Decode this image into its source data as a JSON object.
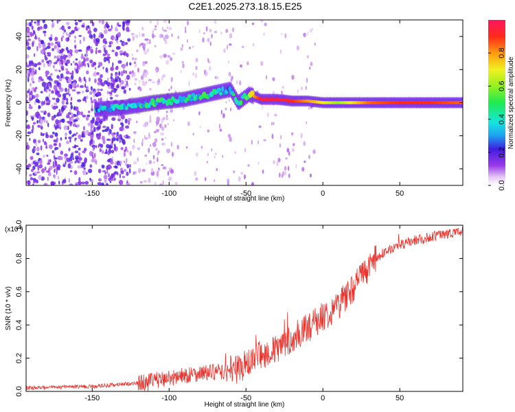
{
  "title": "C2E1.2025.273.18.15.E25",
  "chart_data": [
    {
      "type": "heatmap",
      "name": "spectrogram",
      "xlabel": "Height of straight line (km)",
      "ylabel": "Frequency (Hz)",
      "xlim": [
        -193,
        91
      ],
      "ylim": [
        -50,
        50
      ],
      "xticks": [
        -150,
        -100,
        -50,
        0,
        50
      ],
      "yticks": [
        -40,
        -20,
        0,
        20,
        40
      ],
      "colorbar": {
        "label": "Normalized spectral amplitude",
        "range": [
          0.0,
          1.0
        ],
        "ticks": [
          0.0,
          0.2,
          0.4,
          0.6,
          0.8
        ],
        "tick_labels": [
          "0.0",
          "0.2",
          "0.4",
          "0.6",
          "0.8"
        ]
      },
      "ridge": {
        "description_points_x": [
          -147,
          -130,
          -110,
          -90,
          -75,
          -65,
          -60,
          -55,
          -48,
          -40,
          -30,
          -20,
          -10,
          0,
          10,
          30,
          50,
          70,
          90
        ],
        "description_points_y": [
          -4,
          -3,
          0,
          2,
          5,
          7,
          8,
          0,
          5,
          2,
          2,
          1,
          1,
          0,
          0,
          0,
          0,
          0,
          0
        ],
        "peak_amplitude": [
          0.35,
          0.4,
          0.45,
          0.45,
          0.5,
          0.4,
          0.4,
          0.5,
          0.7,
          0.95,
          0.95,
          0.9,
          0.8,
          0.7,
          0.6,
          0.85,
          0.9,
          0.9,
          0.85
        ]
      },
      "axis_labels": {
        "x_ticks": [
          "-150",
          "-100",
          "-50",
          "0",
          "50"
        ],
        "y_ticks": [
          "-40",
          "-20",
          "0",
          "20",
          "40"
        ]
      }
    },
    {
      "type": "line",
      "name": "snr",
      "xlabel": "Height of straight line (km)",
      "ylabel": "SNR (10 * v/v)",
      "scale_label": "(x10",
      "scale_exp": "4",
      "xlim": [
        -193,
        91
      ],
      "ylim": [
        0.0,
        1.0
      ],
      "xticks": [
        -150,
        -100,
        -50,
        0,
        50
      ],
      "yticks": [
        0.0,
        0.2,
        0.4,
        0.6,
        0.8,
        1.0
      ],
      "xtick_labels": [
        "-150",
        "-100",
        "-50",
        "0",
        "50"
      ],
      "ytick_labels": [
        "0.0",
        "0.2",
        "0.4",
        "0.6",
        "0.8",
        "1.0"
      ],
      "color": "#e8322b",
      "trend_x": [
        -193,
        -150,
        -120,
        -100,
        -80,
        -60,
        -50,
        -40,
        -30,
        -20,
        -10,
        0,
        10,
        20,
        30,
        40,
        50,
        60,
        70,
        80,
        91
      ],
      "trend_y": [
        0.02,
        0.03,
        0.05,
        0.08,
        0.11,
        0.12,
        0.16,
        0.22,
        0.25,
        0.32,
        0.38,
        0.45,
        0.52,
        0.63,
        0.75,
        0.84,
        0.88,
        0.91,
        0.93,
        0.95,
        0.96
      ]
    }
  ]
}
